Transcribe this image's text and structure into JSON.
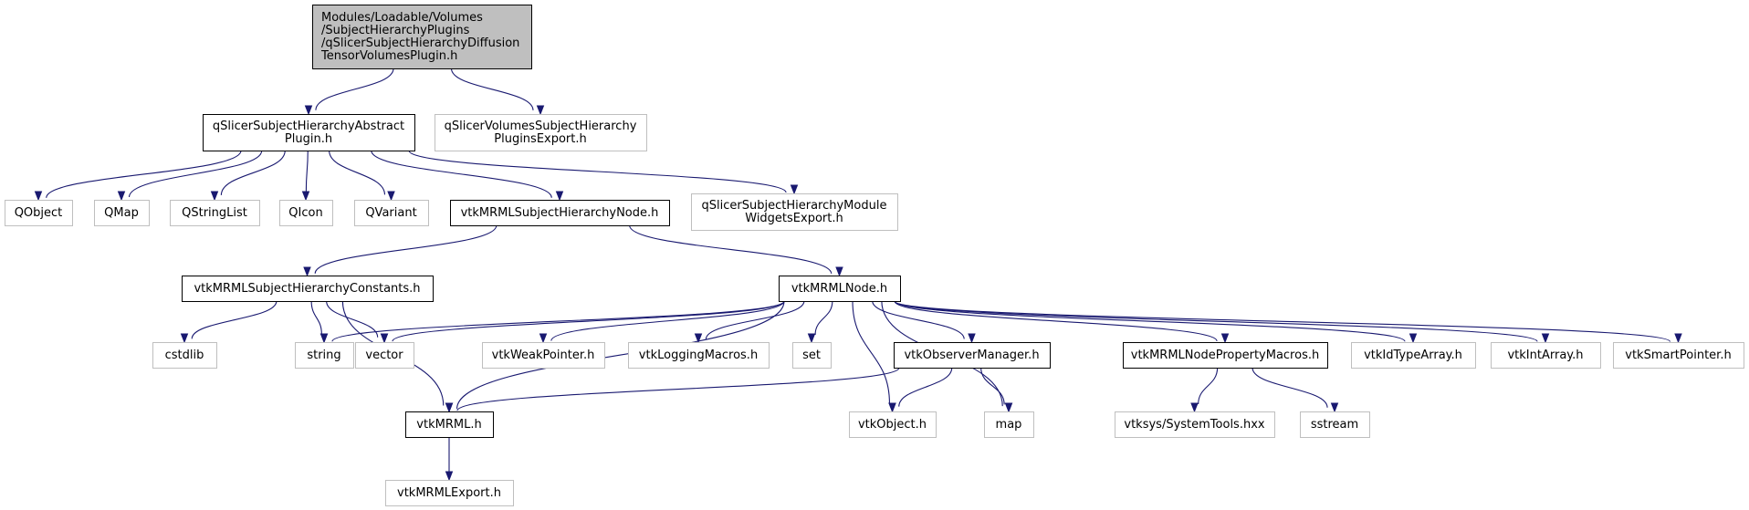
{
  "colors": {
    "edge": "#191970",
    "root_fill": "#bfbfbf",
    "root_border": "#000000",
    "documented_border": "#000000",
    "undocumented_border": "#bfbfbf",
    "node_fill": "#ffffff"
  },
  "nodes": [
    {
      "id": "root",
      "kind": "root",
      "lines": [
        "Modules/Loadable/Volumes",
        "/SubjectHierarchyPlugins",
        "/qSlicerSubjectHierarchyDiffusion",
        "TensorVolumesPlugin.h"
      ]
    },
    {
      "id": "abstract",
      "kind": "documented",
      "lines": [
        "qSlicerSubjectHierarchyAbstract",
        "Plugin.h"
      ]
    },
    {
      "id": "volexport",
      "kind": "external",
      "lines": [
        "qSlicerVolumesSubjectHierarchy",
        "PluginsExport.h"
      ]
    },
    {
      "id": "qobject",
      "kind": "external",
      "lines": [
        "QObject"
      ]
    },
    {
      "id": "qmap",
      "kind": "external",
      "lines": [
        "QMap"
      ]
    },
    {
      "id": "qstringlist",
      "kind": "external",
      "lines": [
        "QStringList"
      ]
    },
    {
      "id": "qicon",
      "kind": "external",
      "lines": [
        "QIcon"
      ]
    },
    {
      "id": "qvariant",
      "kind": "external",
      "lines": [
        "QVariant"
      ]
    },
    {
      "id": "shnode",
      "kind": "documented",
      "lines": [
        "vtkMRMLSubjectHierarchyNode.h"
      ]
    },
    {
      "id": "modwidgets",
      "kind": "external",
      "lines": [
        "qSlicerSubjectHierarchyModule",
        "WidgetsExport.h"
      ]
    },
    {
      "id": "shconst",
      "kind": "documented",
      "lines": [
        "vtkMRMLSubjectHierarchyConstants.h"
      ]
    },
    {
      "id": "mrmlnode",
      "kind": "documented",
      "lines": [
        "vtkMRMLNode.h"
      ]
    },
    {
      "id": "cstdlib",
      "kind": "external",
      "lines": [
        "cstdlib"
      ]
    },
    {
      "id": "string",
      "kind": "external",
      "lines": [
        "string"
      ]
    },
    {
      "id": "vector",
      "kind": "external",
      "lines": [
        "vector"
      ]
    },
    {
      "id": "weakptr",
      "kind": "external",
      "lines": [
        "vtkWeakPointer.h"
      ]
    },
    {
      "id": "logging",
      "kind": "external",
      "lines": [
        "vtkLoggingMacros.h"
      ]
    },
    {
      "id": "set",
      "kind": "external",
      "lines": [
        "set"
      ]
    },
    {
      "id": "observer",
      "kind": "documented",
      "lines": [
        "vtkObserverManager.h"
      ]
    },
    {
      "id": "propmacros",
      "kind": "documented",
      "lines": [
        "vtkMRMLNodePropertyMacros.h"
      ]
    },
    {
      "id": "idtype",
      "kind": "external",
      "lines": [
        "vtkIdTypeArray.h"
      ]
    },
    {
      "id": "intarray",
      "kind": "external",
      "lines": [
        "vtkIntArray.h"
      ]
    },
    {
      "id": "smartptr",
      "kind": "external",
      "lines": [
        "vtkSmartPointer.h"
      ]
    },
    {
      "id": "mrml",
      "kind": "documented",
      "lines": [
        "vtkMRML.h"
      ]
    },
    {
      "id": "vtkobject",
      "kind": "external",
      "lines": [
        "vtkObject.h"
      ]
    },
    {
      "id": "map",
      "kind": "external",
      "lines": [
        "map"
      ]
    },
    {
      "id": "systools",
      "kind": "external",
      "lines": [
        "vtksys/SystemTools.hxx"
      ]
    },
    {
      "id": "sstream",
      "kind": "external",
      "lines": [
        "sstream"
      ]
    },
    {
      "id": "mrmlexport",
      "kind": "external",
      "lines": [
        "vtkMRMLExport.h"
      ]
    }
  ],
  "edges": [
    [
      "root",
      "abstract"
    ],
    [
      "root",
      "volexport"
    ],
    [
      "abstract",
      "qobject"
    ],
    [
      "abstract",
      "qmap"
    ],
    [
      "abstract",
      "qstringlist"
    ],
    [
      "abstract",
      "qicon"
    ],
    [
      "abstract",
      "qvariant"
    ],
    [
      "abstract",
      "shnode"
    ],
    [
      "abstract",
      "modwidgets"
    ],
    [
      "shnode",
      "shconst"
    ],
    [
      "shnode",
      "mrmlnode"
    ],
    [
      "shconst",
      "cstdlib"
    ],
    [
      "shconst",
      "string"
    ],
    [
      "shconst",
      "vector"
    ],
    [
      "shconst",
      "mrml"
    ],
    [
      "mrmlnode",
      "string"
    ],
    [
      "mrmlnode",
      "vector"
    ],
    [
      "mrmlnode",
      "weakptr"
    ],
    [
      "mrmlnode",
      "logging"
    ],
    [
      "mrmlnode",
      "set"
    ],
    [
      "mrmlnode",
      "observer"
    ],
    [
      "mrmlnode",
      "propmacros"
    ],
    [
      "mrmlnode",
      "idtype"
    ],
    [
      "mrmlnode",
      "intarray"
    ],
    [
      "mrmlnode",
      "smartptr"
    ],
    [
      "mrmlnode",
      "mrml"
    ],
    [
      "mrmlnode",
      "vtkobject"
    ],
    [
      "mrmlnode",
      "map"
    ],
    [
      "observer",
      "mrml"
    ],
    [
      "observer",
      "vtkobject"
    ],
    [
      "observer",
      "map"
    ],
    [
      "propmacros",
      "systools"
    ],
    [
      "propmacros",
      "sstream"
    ],
    [
      "mrml",
      "mrmlexport"
    ]
  ]
}
